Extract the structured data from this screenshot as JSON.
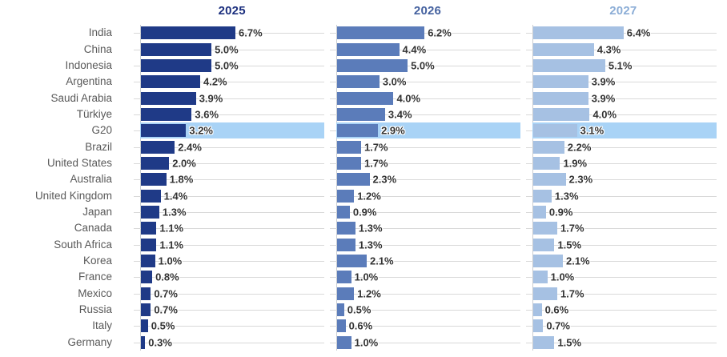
{
  "chart_data": {
    "type": "bar",
    "orientation": "horizontal",
    "unit": "%",
    "value_decimals": 1,
    "grid": true,
    "xlim": [
      0,
      13
    ],
    "highlight_category": "G20",
    "highlight_color": "#a9d3f6",
    "gridline_color": "#d9d9d9",
    "axis_line_color": "#c9cdd2",
    "category_label_color": "#595959",
    "value_label_color": "#333333",
    "categories": [
      "India",
      "China",
      "Indonesia",
      "Argentina",
      "Saudi Arabia",
      "Türkiye",
      "G20",
      "Brazil",
      "United States",
      "Australia",
      "United Kingdom",
      "Japan",
      "Canada",
      "South Africa",
      "Korea",
      "France",
      "Mexico",
      "Russia",
      "Italy",
      "Germany"
    ],
    "series": [
      {
        "name": "2025",
        "color": "#1f3a87",
        "header_color": "#1b2f7e",
        "values": [
          6.7,
          5.0,
          5.0,
          4.2,
          3.9,
          3.6,
          3.2,
          2.4,
          2.0,
          1.8,
          1.4,
          1.3,
          1.1,
          1.1,
          1.0,
          0.8,
          0.7,
          0.7,
          0.5,
          0.3
        ]
      },
      {
        "name": "2026",
        "color": "#5b7cba",
        "header_color": "#44619f",
        "values": [
          6.2,
          4.4,
          5.0,
          3.0,
          4.0,
          3.4,
          2.9,
          1.7,
          1.7,
          2.3,
          1.2,
          0.9,
          1.3,
          1.3,
          2.1,
          1.0,
          1.2,
          0.5,
          0.6,
          1.0
        ]
      },
      {
        "name": "2027",
        "color": "#a6c1e3",
        "header_color": "#8badd6",
        "values": [
          6.4,
          4.3,
          5.1,
          3.9,
          3.9,
          4.0,
          3.1,
          2.2,
          1.9,
          2.3,
          1.3,
          0.9,
          1.7,
          1.5,
          2.1,
          1.0,
          1.7,
          0.6,
          0.7,
          1.5
        ]
      }
    ]
  }
}
